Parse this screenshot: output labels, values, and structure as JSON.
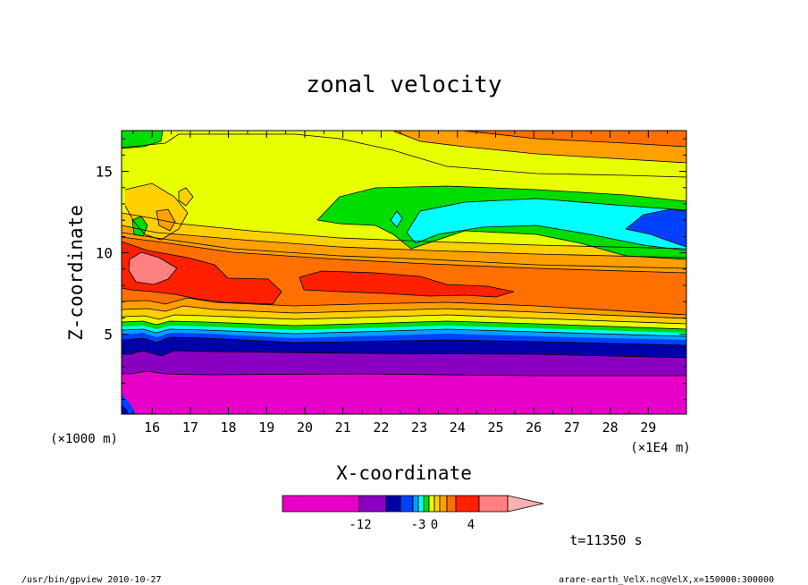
{
  "chart_data": {
    "type": "contour",
    "title": "zonal velocity",
    "xlabel": "X-coordinate",
    "ylabel": "Z-coordinate",
    "x_unit": "(×1E4 m)",
    "y_unit": "(×1000 m)",
    "xlim": [
      15.2,
      30.0
    ],
    "ylim": [
      0.1,
      17.5
    ],
    "x_ticks": [
      "16",
      "17",
      "18",
      "19",
      "20",
      "21",
      "22",
      "23",
      "24",
      "25",
      "26",
      "27",
      "28",
      "29"
    ],
    "y_ticks": [
      "5",
      "10",
      "15"
    ],
    "colorbar": {
      "tick_labels": [
        "-12",
        "-3",
        "0",
        "4"
      ],
      "colors": [
        "#e600c8",
        "#8a00c0",
        "#0000a8",
        "#0040ff",
        "#00a0ff",
        "#00ffff",
        "#00dd00",
        "#e8ff00",
        "#ffd000",
        "#ffa000",
        "#ff7000",
        "#ff2000",
        "#ff8080",
        "#ffb0b0"
      ]
    },
    "annotation_time": "t=11350 s",
    "footer_left": "/usr/bin/gpview   2010-10-27",
    "footer_right": "arare-earth_VelX.nc@VelX,x=150000:300000"
  }
}
